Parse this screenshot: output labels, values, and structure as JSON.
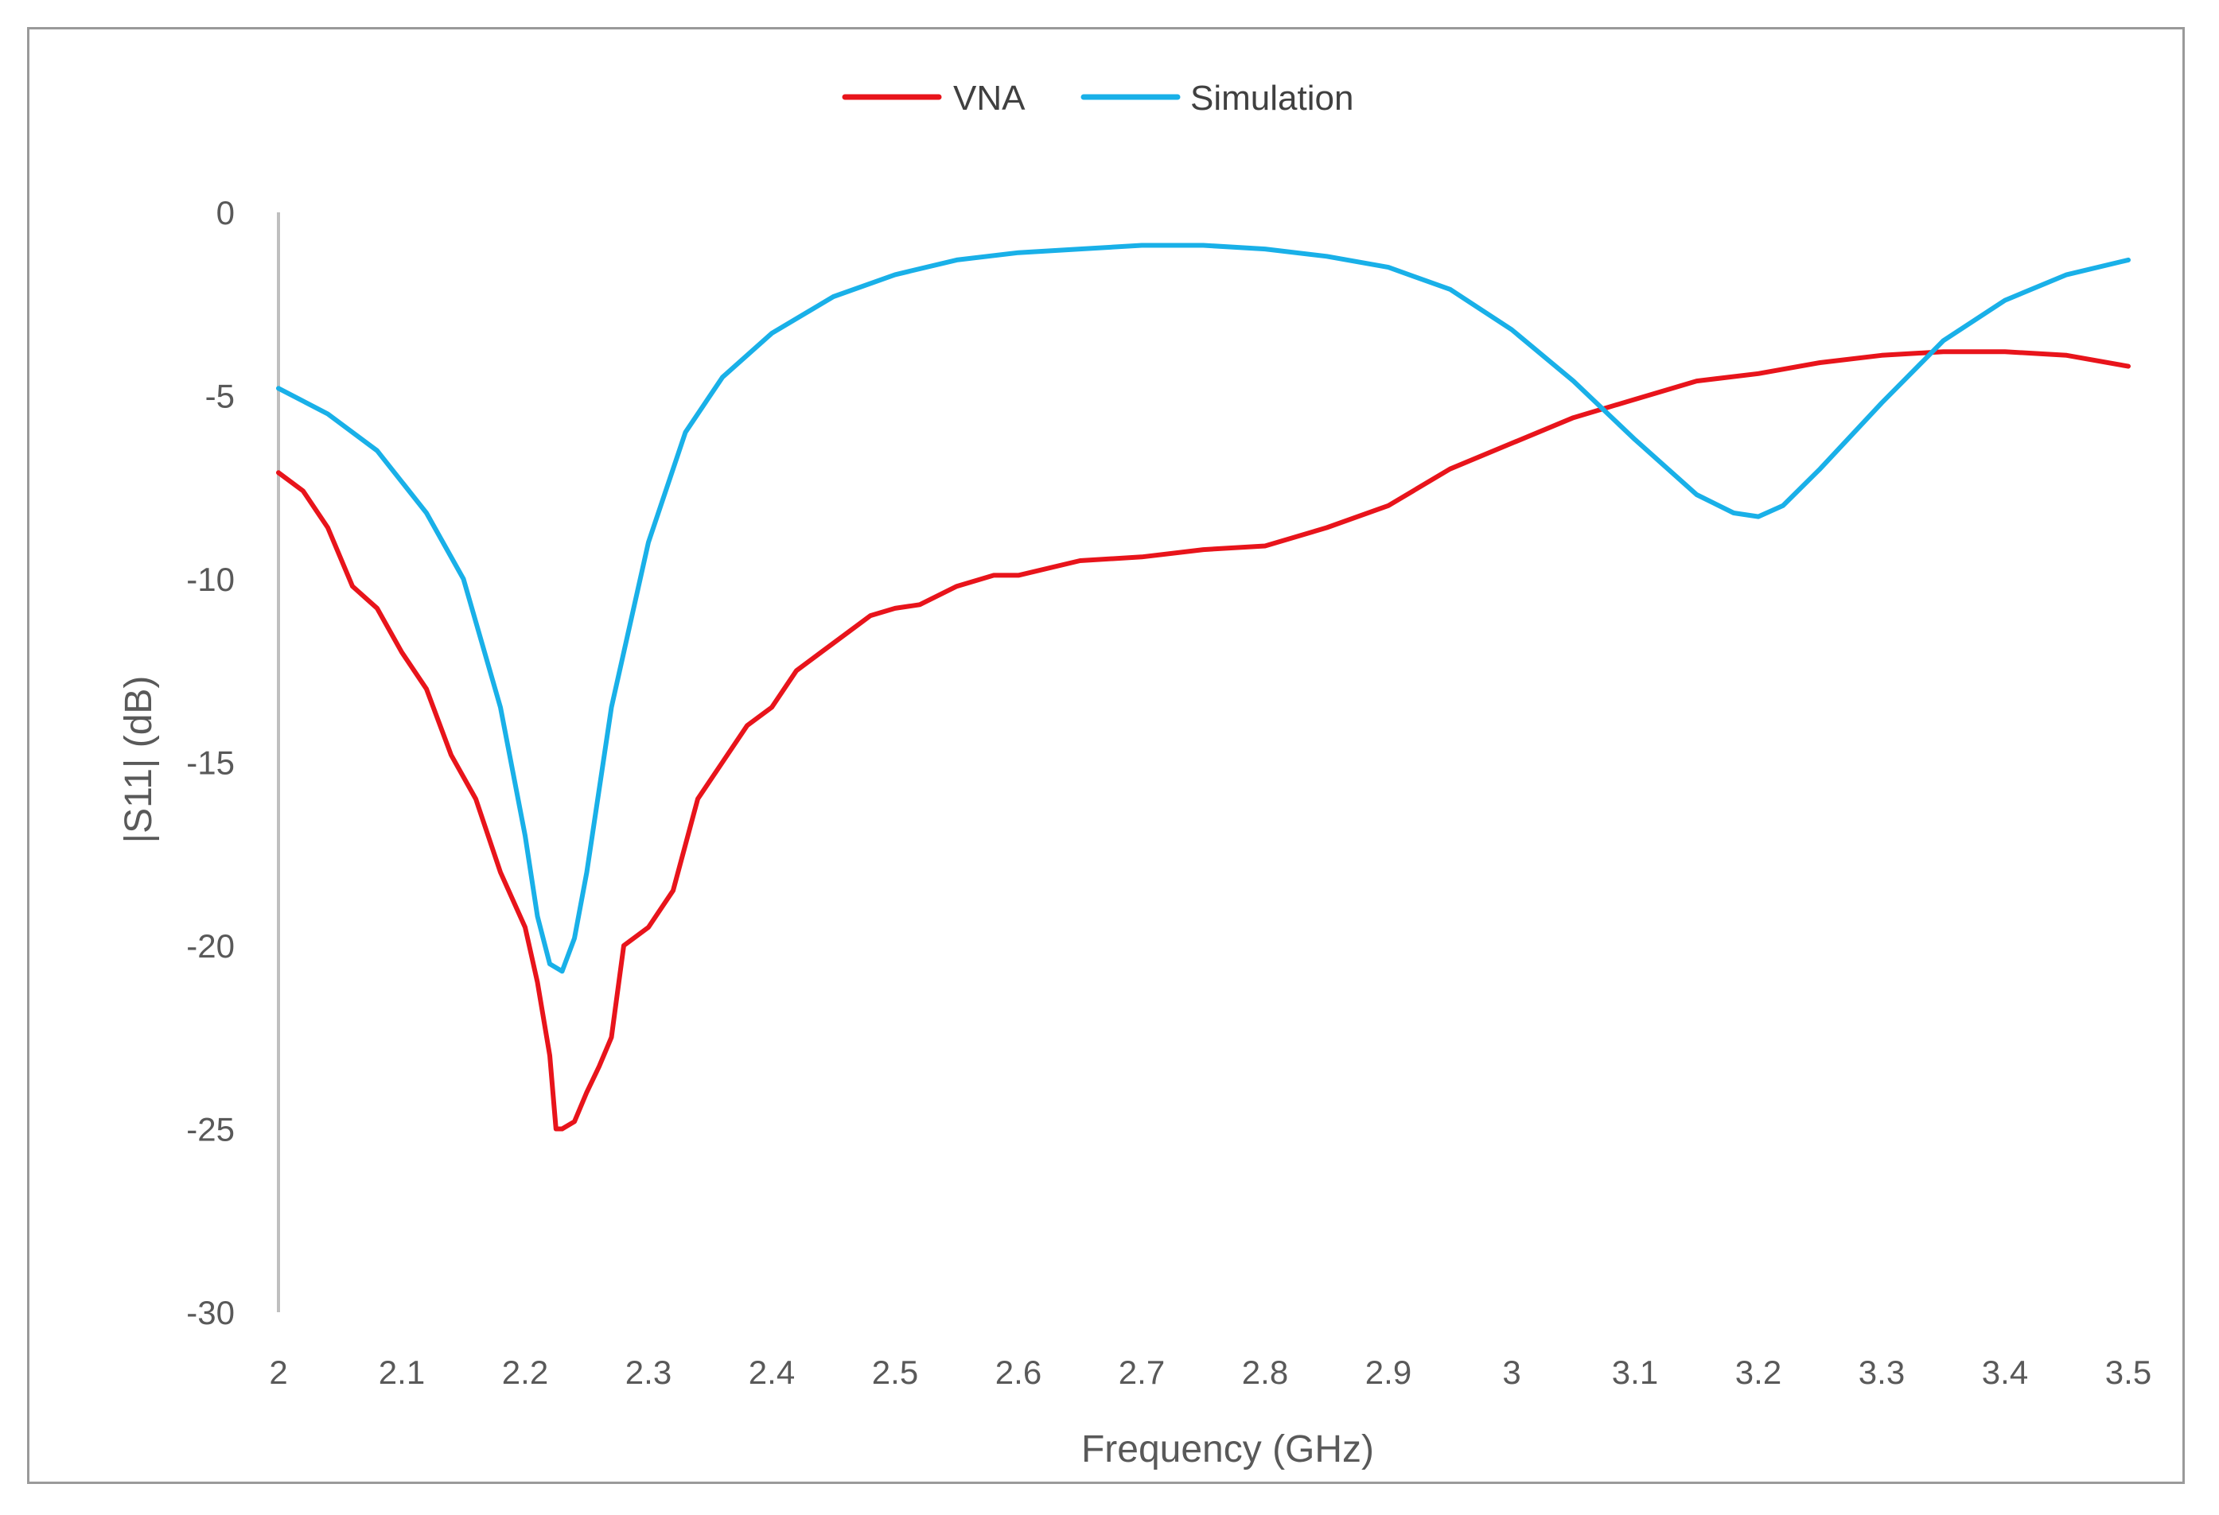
{
  "chart_data": {
    "type": "line",
    "title": "",
    "xlabel": "Frequency (GHz)",
    "ylabel": "|S11| (dB)",
    "xlim": [
      2,
      3.5
    ],
    "ylim": [
      -30,
      0
    ],
    "xticks": [
      "2",
      "2.1",
      "2.2",
      "2.3",
      "2.4",
      "2.5",
      "2.6",
      "2.7",
      "2.8",
      "2.9",
      "3",
      "3.1",
      "3.2",
      "3.3",
      "3.4",
      "3.5"
    ],
    "yticks": [
      "0",
      "-5",
      "-10",
      "-15",
      "-20",
      "-25",
      "-30"
    ],
    "grid": false,
    "legend": {
      "position": "top-center",
      "entries": [
        "VNA",
        "Simulation"
      ]
    },
    "series": [
      {
        "name": "VNA",
        "color": "#e8141b",
        "x": [
          2.0,
          2.02,
          2.04,
          2.06,
          2.08,
          2.1,
          2.12,
          2.14,
          2.16,
          2.18,
          2.2,
          2.21,
          2.22,
          2.225,
          2.23,
          2.24,
          2.25,
          2.26,
          2.27,
          2.28,
          2.3,
          2.32,
          2.34,
          2.36,
          2.38,
          2.4,
          2.42,
          2.44,
          2.46,
          2.48,
          2.5,
          2.52,
          2.55,
          2.58,
          2.6,
          2.65,
          2.7,
          2.75,
          2.8,
          2.85,
          2.9,
          2.95,
          3.0,
          3.05,
          3.1,
          3.15,
          3.2,
          3.25,
          3.3,
          3.35,
          3.4,
          3.45,
          3.5
        ],
        "y": [
          -7.1,
          -7.6,
          -8.6,
          -10.2,
          -10.8,
          -12.0,
          -13.0,
          -14.8,
          -16.0,
          -18.0,
          -19.5,
          -21.0,
          -23.0,
          -25.0,
          -25.0,
          -24.8,
          -24.0,
          -23.3,
          -22.5,
          -20.0,
          -19.5,
          -18.5,
          -16.0,
          -15.0,
          -14.0,
          -13.5,
          -12.5,
          -12.0,
          -11.5,
          -11.0,
          -10.8,
          -10.7,
          -10.2,
          -9.9,
          -9.9,
          -9.5,
          -9.4,
          -9.2,
          -9.1,
          -8.6,
          -8.0,
          -7.0,
          -6.3,
          -5.6,
          -5.1,
          -4.6,
          -4.4,
          -4.1,
          -3.9,
          -3.8,
          -3.8,
          -3.9,
          -4.2
        ]
      },
      {
        "name": "Simulation",
        "color": "#19b0e8",
        "x": [
          2.0,
          2.04,
          2.08,
          2.12,
          2.15,
          2.18,
          2.2,
          2.21,
          2.22,
          2.23,
          2.24,
          2.25,
          2.27,
          2.3,
          2.33,
          2.36,
          2.4,
          2.45,
          2.5,
          2.55,
          2.6,
          2.65,
          2.7,
          2.75,
          2.8,
          2.85,
          2.9,
          2.95,
          3.0,
          3.05,
          3.1,
          3.15,
          3.18,
          3.2,
          3.22,
          3.25,
          3.3,
          3.35,
          3.4,
          3.45,
          3.5
        ],
        "y": [
          -4.8,
          -5.5,
          -6.5,
          -8.2,
          -10.0,
          -13.5,
          -17.0,
          -19.2,
          -20.5,
          -20.7,
          -19.8,
          -18.0,
          -13.5,
          -9.0,
          -6.0,
          -4.5,
          -3.3,
          -2.3,
          -1.7,
          -1.3,
          -1.1,
          -1.0,
          -0.9,
          -0.9,
          -1.0,
          -1.2,
          -1.5,
          -2.1,
          -3.2,
          -4.6,
          -6.2,
          -7.7,
          -8.2,
          -8.3,
          -8.0,
          -7.0,
          -5.2,
          -3.5,
          -2.4,
          -1.7,
          -1.3
        ]
      }
    ]
  }
}
